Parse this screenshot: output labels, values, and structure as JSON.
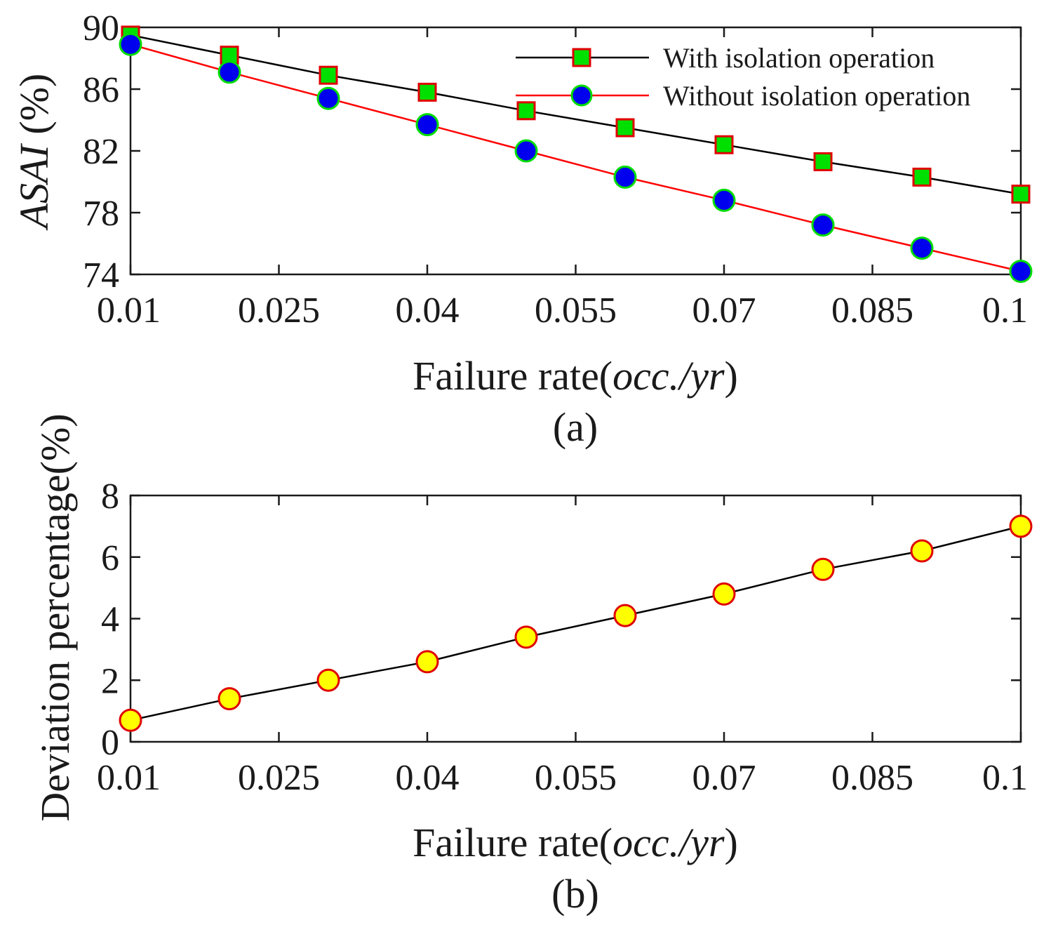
{
  "chart_data": [
    {
      "type": "line",
      "panel_label": "(a)",
      "ylabel_italic": "ASAI",
      "ylabel_rest": " (%)",
      "xlabel_plain": "Failure rate(",
      "xlabel_italic": "occ./yr",
      "xlabel_close": ")",
      "xlim": [
        0.01,
        0.1
      ],
      "ylim": [
        74,
        90
      ],
      "xticks": [
        "0.01",
        "0.025",
        "0.04",
        "0.055",
        "0.07",
        "0.085",
        "0.1"
      ],
      "yticks": [
        "74",
        "78",
        "82",
        "86",
        "90"
      ],
      "x": [
        0.01,
        0.02,
        0.03,
        0.04,
        0.05,
        0.06,
        0.07,
        0.08,
        0.09,
        0.1
      ],
      "legend_position": "top-right",
      "series": [
        {
          "name": "With isolation operation",
          "line_color": "#000000",
          "marker": "square",
          "marker_fill": "#00e000",
          "marker_edge": "#e00000",
          "values": [
            89.5,
            88.2,
            86.9,
            85.8,
            84.6,
            83.5,
            82.4,
            81.3,
            80.3,
            79.2
          ]
        },
        {
          "name": "Without isolation operation",
          "line_color": "#ff0000",
          "marker": "circle",
          "marker_fill": "#0000ee",
          "marker_edge": "#00dd00",
          "values": [
            88.9,
            87.1,
            85.4,
            83.7,
            82.0,
            80.3,
            78.8,
            77.2,
            75.7,
            74.2
          ]
        }
      ]
    },
    {
      "type": "line",
      "panel_label": "(b)",
      "ylabel": "Deviation percentage(%)",
      "xlabel_plain": "Failure rate(",
      "xlabel_italic": "occ./yr",
      "xlabel_close": ")",
      "xlim": [
        0.01,
        0.1
      ],
      "ylim": [
        0,
        8
      ],
      "xticks": [
        "0.01",
        "0.025",
        "0.04",
        "0.055",
        "0.07",
        "0.085",
        "0.1"
      ],
      "yticks": [
        "0",
        "2",
        "4",
        "6",
        "8"
      ],
      "x": [
        0.01,
        0.02,
        0.03,
        0.04,
        0.05,
        0.06,
        0.07,
        0.08,
        0.09,
        0.1
      ],
      "series": [
        {
          "line_color": "#000000",
          "marker": "circle",
          "marker_fill": "#ffff00",
          "marker_edge": "#e00000",
          "values": [
            0.7,
            1.4,
            2.0,
            2.6,
            3.4,
            4.1,
            4.8,
            5.6,
            6.2,
            7.0
          ]
        }
      ]
    }
  ]
}
